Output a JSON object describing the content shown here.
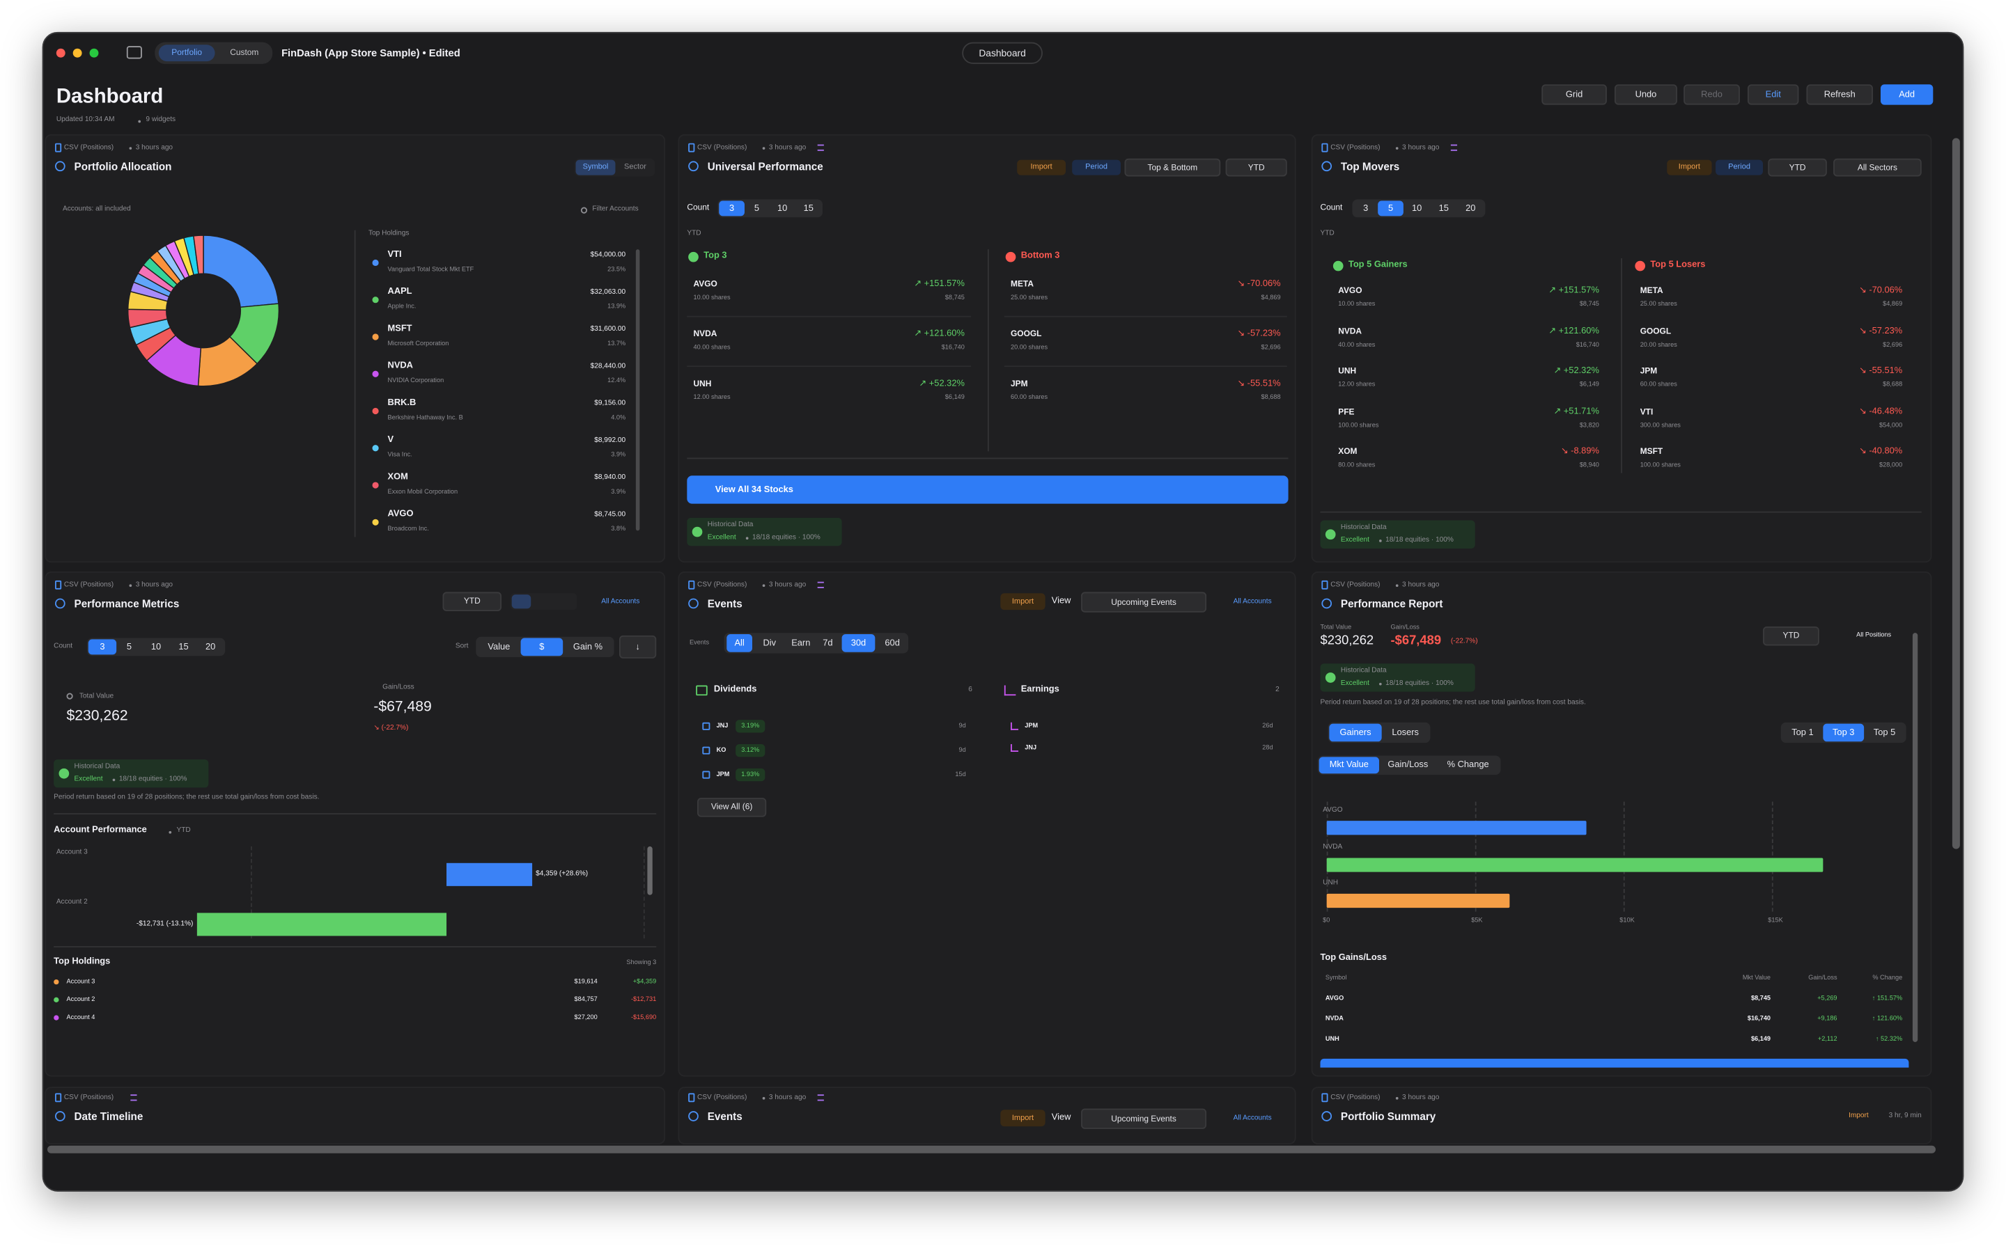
{
  "window": {
    "tabs": [
      "Portfolio",
      "Custom"
    ],
    "document": "FinDash (App Store Sample) • Edited",
    "center_tab": "Dashboard"
  },
  "header": {
    "title": "Dashboard",
    "updated": "Updated 10:34 AM",
    "widgets": "9 widgets",
    "toolbar": [
      "Grid",
      "Undo",
      "Redo",
      "Edit",
      "Refresh",
      "Add"
    ]
  },
  "widgets": [
    {
      "source": "CSV (Positions)",
      "age": "3 hours ago",
      "title": "Portfolio Allocation",
      "toggle": [
        "Symbol",
        "Sector"
      ],
      "accounts": "Accounts: all included",
      "filter": "Filter Accounts",
      "holdings_title": "Top Holdings",
      "holdings": [
        {
          "symbol": "VTI",
          "name": "Vanguard Total Stock Mkt ETF",
          "value": "$54,000.00",
          "color": "#4a8ff7"
        },
        {
          "symbol": "AAPL",
          "name": "Apple Inc.",
          "value": "$32,063.00",
          "color": "#5fd068"
        },
        {
          "symbol": "MSFT",
          "name": "Microsoft Corporation",
          "value": "$31,600.00",
          "color": "#f59e46"
        },
        {
          "symbol": "NVDA",
          "name": "NVIDIA Corporation",
          "value": "$28,440.00",
          "color": "#c855ef"
        },
        {
          "symbol": "BRK.B",
          "name": "Berkshire Hathaway Inc. B",
          "value": "$9,156.00",
          "color": "#f25a5a"
        },
        {
          "symbol": "V",
          "name": "Visa Inc.",
          "value": "$8,992.00",
          "color": "#5ac8f5"
        },
        {
          "symbol": "XOM",
          "name": "Exxon Mobil Corporation",
          "value": "$8,940.00",
          "color": "#f05a6a"
        },
        {
          "symbol": "AVGO",
          "name": "Broadcom Inc.",
          "value": "$8,745.00",
          "color": "#f7d046"
        }
      ],
      "shares": [
        23.5,
        13.9,
        13.7,
        12.4,
        4.0,
        3.9,
        3.9,
        3.8
      ],
      "share_labels": [
        "23.5%",
        "13.9%",
        "13.7%",
        "12.4%",
        "4.0%",
        "3.9%",
        "3.9%",
        "3.8%"
      ]
    },
    {
      "source": "CSV (Positions)",
      "age": "3 hours ago",
      "title": "Universal Performance",
      "actions": [
        "Import",
        "Period"
      ],
      "mode": "Top & Bottom",
      "period": "YTD",
      "count_label": "Count",
      "counts": [
        "3",
        "5",
        "10",
        "15"
      ],
      "period_caption": "YTD",
      "top_title": "Top 3",
      "bottom_title": "Bottom 3",
      "top": [
        {
          "symbol": "AVGO",
          "shares": "10.00 shares",
          "change": "↗ +151.57%",
          "value": "$8,745"
        },
        {
          "symbol": "NVDA",
          "shares": "40.00 shares",
          "change": "↗ +121.60%",
          "value": "$16,740"
        },
        {
          "symbol": "UNH",
          "shares": "12.00 shares",
          "change": "↗ +52.32%",
          "value": "$6,149"
        }
      ],
      "bottom": [
        {
          "symbol": "META",
          "shares": "25.00 shares",
          "change": "↘ -70.06%",
          "value": "$4,869"
        },
        {
          "symbol": "GOOGL",
          "shares": "20.00 shares",
          "change": "↘ -57.23%",
          "value": "$2,696"
        },
        {
          "symbol": "JPM",
          "shares": "60.00 shares",
          "change": "↘ -55.51%",
          "value": "$8,688"
        }
      ],
      "view_all": "View All 34 Stocks",
      "quality": {
        "title": "Historical Data",
        "rating": "Excellent",
        "coverage": "18/18 equities · 100%"
      }
    },
    {
      "source": "CSV (Positions)",
      "age": "3 hours ago",
      "title": "Top Movers",
      "actions": [
        "Import",
        "Period"
      ],
      "period": "YTD",
      "sector": "All Sectors",
      "count_label": "Count",
      "counts": [
        "3",
        "5",
        "10",
        "15",
        "20"
      ],
      "period_caption": "YTD",
      "top_title": "Top 5 Gainers",
      "bottom_title": "Top 5 Losers",
      "top": [
        {
          "symbol": "AVGO",
          "shares": "10.00 shares",
          "change": "↗ +151.57%",
          "value": "$8,745"
        },
        {
          "symbol": "NVDA",
          "shares": "40.00 shares",
          "change": "↗ +121.60%",
          "value": "$16,740"
        },
        {
          "symbol": "UNH",
          "shares": "12.00 shares",
          "change": "↗ +52.32%",
          "value": "$6,149"
        },
        {
          "symbol": "PFE",
          "shares": "100.00 shares",
          "change": "↗ +51.71%",
          "value": "$3,820"
        },
        {
          "symbol": "XOM",
          "shares": "80.00 shares",
          "change": "↘ -8.89%",
          "value": "$8,940"
        }
      ],
      "bottom": [
        {
          "symbol": "META",
          "shares": "25.00 shares",
          "change": "↘ -70.06%",
          "value": "$4,869"
        },
        {
          "symbol": "GOOGL",
          "shares": "20.00 shares",
          "change": "↘ -57.23%",
          "value": "$2,696"
        },
        {
          "symbol": "JPM",
          "shares": "60.00 shares",
          "change": "↘ -55.51%",
          "value": "$8,688"
        },
        {
          "symbol": "VTI",
          "shares": "300.00 shares",
          "change": "↘ -46.48%",
          "value": "$54,000"
        },
        {
          "symbol": "MSFT",
          "shares": "100.00 shares",
          "change": "↘ -40.80%",
          "value": "$28,000"
        }
      ],
      "quality": {
        "title": "Historical Data",
        "rating": "Excellent",
        "coverage": "18/18 equities · 100%"
      }
    },
    {
      "source": "CSV (Positions)",
      "age": "3 hours ago",
      "title": "Performance Metrics",
      "period": "YTD",
      "accounts": "All Accounts",
      "count_label": "Count",
      "counts": [
        "3",
        "5",
        "10",
        "15",
        "20"
      ],
      "sort_label": "Sort",
      "sort": [
        "Value",
        "$",
        "Gain %",
        "↓"
      ],
      "total_label": "Total Value",
      "total": "$230,262",
      "gain_label": "Gain/Loss",
      "gain": "-$67,489",
      "gain_pct": "↘ (-22.7%)",
      "quality": {
        "title": "Historical Data",
        "rating": "Excellent",
        "coverage": "18/18 equities · 100%"
      },
      "note": "Period return based on 19 of 28 positions; the rest use total gain/loss from cost basis.",
      "chart": {
        "type": "bar",
        "title": "Account Performance",
        "period": "YTD",
        "categories": [
          "Account 3",
          "Account 2"
        ],
        "values": [
          4359,
          -12731
        ],
        "value_labels": [
          "$4,359 (+28.6%)",
          "-$12,731 (-13.1%)"
        ],
        "colors": [
          "#3b82f6",
          "#5fd068"
        ]
      },
      "holdings_title": "Top Holdings",
      "holdings_count": "Showing 3",
      "holdings": [
        {
          "name": "Account 3",
          "value": "$19,614",
          "gain": "+$4,359",
          "color": "#f59e46"
        },
        {
          "name": "Account 2",
          "value": "$84,757",
          "gain": "-$12,731",
          "color": "#5fd068"
        },
        {
          "name": "Account 4",
          "value": "$27,200",
          "gain": "-$15,690",
          "color": "#c855ef"
        }
      ]
    },
    {
      "source": "CSV (Positions)",
      "age": "3 hours ago",
      "title": "Events",
      "import": "Import",
      "view_label": "View",
      "view": "Upcoming Events",
      "accounts": "All Accounts",
      "filter_label": "Events",
      "filters": [
        "All",
        "Div",
        "Earn",
        "7d",
        "30d",
        "60d"
      ],
      "dividends": {
        "title": "Dividends",
        "count": "6",
        "rows": [
          {
            "symbol": "JNJ",
            "yield": "3.19%",
            "due": "9d"
          },
          {
            "symbol": "KO",
            "yield": "3.12%",
            "due": "9d"
          },
          {
            "symbol": "JPM",
            "yield": "1.93%",
            "due": "15d"
          }
        ]
      },
      "earnings": {
        "title": "Earnings",
        "count": "2",
        "rows": [
          {
            "symbol": "JPM",
            "due": "26d"
          },
          {
            "symbol": "JNJ",
            "due": "28d"
          }
        ]
      },
      "view_all": "View All (6)"
    },
    {
      "source": "CSV (Positions)",
      "age": "3 hours ago",
      "title": "Performance Report",
      "total_label": "Total Value",
      "total": "$230,262",
      "gain_label": "Gain/Loss",
      "gain": "-$67,489",
      "gain_pct": "(-22.7%)",
      "period": "YTD",
      "positions": "All Positions",
      "quality": {
        "title": "Historical Data",
        "rating": "Excellent",
        "coverage": "18/18 equities · 100%"
      },
      "note": "Period return based on 19 of 28 positions; the rest use total gain/loss from cost basis.",
      "side": [
        "Gainers",
        "Losers"
      ],
      "top": [
        "Top 1",
        "Top 3",
        "Top 5"
      ],
      "metric": [
        "Mkt Value",
        "Gain/Loss",
        "% Change"
      ],
      "chart": {
        "type": "bar",
        "categories": [
          "AVGO",
          "NVDA",
          "UNH"
        ],
        "values": [
          8745,
          16740,
          6149
        ],
        "colors": [
          "#3b82f6",
          "#5fd068",
          "#f59e46"
        ],
        "xlim": [
          0,
          19700
        ],
        "xticks": [
          {
            "value": 0,
            "label": "$0"
          },
          {
            "value": 5000,
            "label": "$5K"
          },
          {
            "value": 10000,
            "label": "$10K"
          },
          {
            "value": 15000,
            "label": "$15K"
          }
        ],
        "grid": true
      },
      "table": {
        "title": "Top Gains/Loss",
        "columns": [
          "Symbol",
          "Mkt Value",
          "Gain/Loss",
          "% Change"
        ],
        "rows": [
          [
            "AVGO",
            "$8,745",
            "+5,269",
            "↑ 151.57%"
          ],
          [
            "NVDA",
            "$16,740",
            "+9,186",
            "↑ 121.60%"
          ],
          [
            "UNH",
            "$6,149",
            "+2,112",
            "↑ 52.32%"
          ]
        ]
      }
    },
    {
      "source": "CSV (Positions)",
      "title": "Date Timeline"
    },
    {
      "source": "CSV (Positions)",
      "age": "3 hours ago",
      "title": "Events",
      "import": "Import",
      "view_label": "View",
      "view": "Upcoming Events",
      "accounts": "All Accounts"
    },
    {
      "source": "CSV (Positions)",
      "age": "3 hours ago",
      "title": "Portfolio Summary",
      "import": "Import",
      "refresh": "3 hr, 9 min"
    }
  ]
}
